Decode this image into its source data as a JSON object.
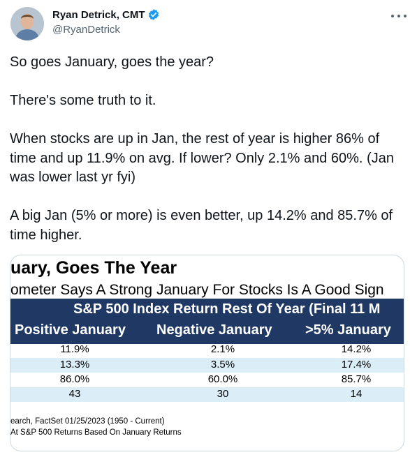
{
  "author": {
    "name": "Ryan Detrick, CMT",
    "handle": "@RyanDetrick"
  },
  "tweet": {
    "paragraphs": [
      "So goes January, goes the year?",
      "There's some truth to it.",
      "When stocks are up in Jan, the rest of year is higher 86% of time and up 11.9% on avg. If lower? Only 2.1% and 60%. (Jan was lower last yr fyi)",
      "A big Jan (5% or more) is even better, up 14.2% and 85.7% of time higher."
    ]
  },
  "image": {
    "title": "uary, Goes The Year",
    "subtitle": "ometer Says A Strong January For Stocks Is A Good Sign",
    "table_title": "S&P 500 Index Return Rest Of Year (Final 11 M",
    "columns": [
      "Positive January",
      "Negative January",
      ">5% January"
    ],
    "rows": [
      [
        "11.9%",
        "2.1%",
        "14.2%"
      ],
      [
        "13.3%",
        "3.5%",
        "17.4%"
      ],
      [
        "86.0%",
        "60.0%",
        "85.7%"
      ],
      [
        "43",
        "30",
        "14"
      ]
    ],
    "source": "earch, FactSet 01/25/2023 (1950 - Current)",
    "note": "At S&P 500 Returns Based On January Returns"
  },
  "colors": {
    "band": "#1f3864",
    "row_shade": "#dbeef8",
    "verified": "#1d9bf0",
    "handle": "#536471"
  }
}
